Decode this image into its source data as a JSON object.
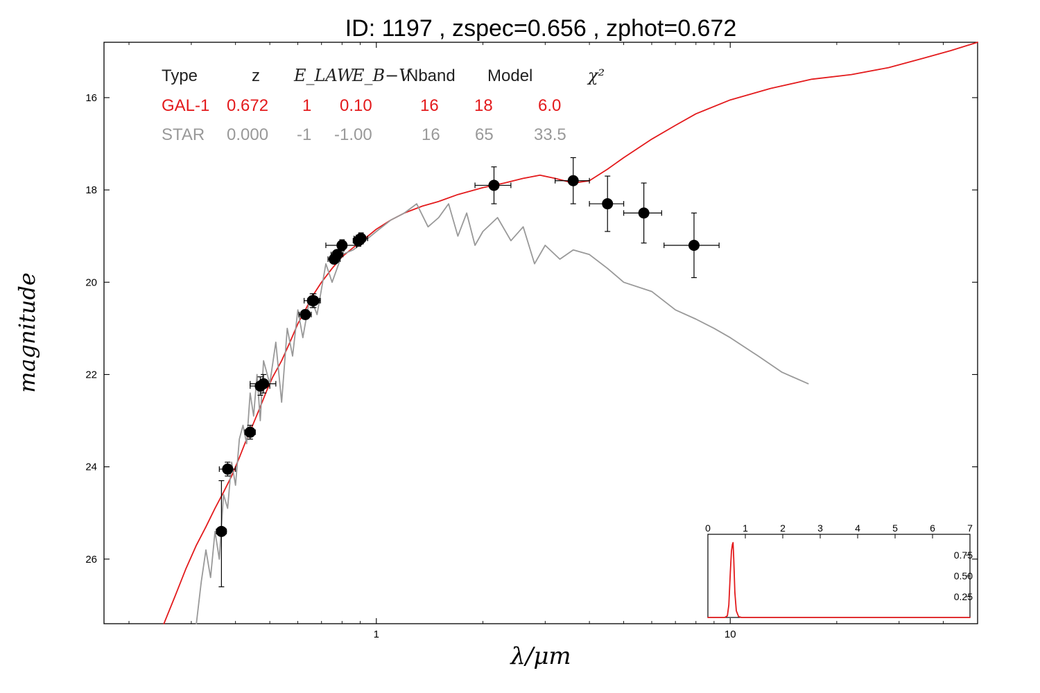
{
  "chart_data": [
    {
      "type": "scatter",
      "title": "ID:  1197  , zspec=0.656 , zphot=0.672",
      "xlabel": "λ/μm",
      "ylabel": "magnitude",
      "xscale": "log",
      "xlim": [
        0.17,
        50
      ],
      "ylim": [
        27.4,
        14.8
      ],
      "y_inverted": true,
      "x_tick_labels": [
        {
          "x": 1,
          "label": "1"
        },
        {
          "x": 10,
          "label": "10"
        }
      ],
      "y_ticks": [
        16,
        18,
        20,
        22,
        24,
        26
      ],
      "legend_table": {
        "header": [
          "Type",
          "z",
          "E_LAW",
          "E_B−V",
          "Nband",
          "Model",
          "χ²"
        ],
        "rows": [
          {
            "values": [
              "GAL-1",
              "0.672",
              "1",
              "0.10",
              "16",
              "18",
              "6.0"
            ],
            "color": "#e31a1c"
          },
          {
            "values": [
              "STAR",
              "0.000",
              "-1",
              "-1.00",
              "16",
              "65",
              "33.5"
            ],
            "color": "#999999"
          }
        ]
      },
      "series": [
        {
          "name": "GAL-1",
          "kind": "line",
          "color": "#e31a1c",
          "points": [
            [
              0.251,
              27.4
            ],
            [
              0.27,
              26.8
            ],
            [
              0.29,
              26.2
            ],
            [
              0.31,
              25.7
            ],
            [
              0.33,
              25.3
            ],
            [
              0.35,
              24.9
            ],
            [
              0.37,
              24.55
            ],
            [
              0.39,
              24.2
            ],
            [
              0.41,
              23.8
            ],
            [
              0.43,
              23.4
            ],
            [
              0.45,
              23.05
            ],
            [
              0.47,
              22.7
            ],
            [
              0.49,
              22.35
            ],
            [
              0.51,
              22.05
            ],
            [
              0.54,
              21.7
            ],
            [
              0.57,
              21.3
            ],
            [
              0.6,
              20.9
            ],
            [
              0.63,
              20.6
            ],
            [
              0.66,
              20.3
            ],
            [
              0.7,
              20.0
            ],
            [
              0.75,
              19.7
            ],
            [
              0.8,
              19.45
            ],
            [
              0.86,
              19.25
            ],
            [
              0.93,
              19.05
            ],
            [
              1.0,
              18.85
            ],
            [
              1.1,
              18.65
            ],
            [
              1.2,
              18.5
            ],
            [
              1.35,
              18.35
            ],
            [
              1.5,
              18.25
            ],
            [
              1.7,
              18.1
            ],
            [
              2.0,
              17.95
            ],
            [
              2.3,
              17.85
            ],
            [
              2.6,
              17.75
            ],
            [
              2.9,
              17.68
            ],
            [
              3.2,
              17.75
            ],
            [
              3.6,
              17.85
            ],
            [
              4.0,
              17.8
            ],
            [
              4.5,
              17.55
            ],
            [
              5.0,
              17.3
            ],
            [
              6.0,
              16.9
            ],
            [
              7.0,
              16.6
            ],
            [
              8.0,
              16.35
            ],
            [
              10.0,
              16.05
            ],
            [
              13.0,
              15.8
            ],
            [
              17.0,
              15.6
            ],
            [
              22.0,
              15.5
            ],
            [
              28.0,
              15.35
            ],
            [
              35.0,
              15.15
            ],
            [
              42.0,
              14.98
            ],
            [
              50.0,
              14.8
            ]
          ]
        },
        {
          "name": "STAR",
          "kind": "line",
          "color": "#999999",
          "points": [
            [
              0.31,
              27.4
            ],
            [
              0.32,
              26.5
            ],
            [
              0.33,
              25.8
            ],
            [
              0.34,
              26.4
            ],
            [
              0.35,
              25.4
            ],
            [
              0.36,
              26.0
            ],
            [
              0.37,
              24.6
            ],
            [
              0.38,
              24.9
            ],
            [
              0.39,
              23.9
            ],
            [
              0.4,
              24.4
            ],
            [
              0.41,
              23.4
            ],
            [
              0.42,
              23.1
            ],
            [
              0.43,
              23.5
            ],
            [
              0.44,
              22.4
            ],
            [
              0.45,
              22.9
            ],
            [
              0.46,
              22.0
            ],
            [
              0.47,
              23.0
            ],
            [
              0.48,
              21.7
            ],
            [
              0.5,
              22.2
            ],
            [
              0.52,
              21.3
            ],
            [
              0.54,
              22.6
            ],
            [
              0.56,
              21.0
            ],
            [
              0.58,
              21.6
            ],
            [
              0.6,
              20.6
            ],
            [
              0.62,
              21.2
            ],
            [
              0.65,
              20.3
            ],
            [
              0.68,
              20.7
            ],
            [
              0.72,
              19.6
            ],
            [
              0.75,
              20.0
            ],
            [
              0.8,
              19.4
            ],
            [
              0.86,
              19.3
            ],
            [
              0.93,
              19.1
            ],
            [
              1.0,
              18.9
            ],
            [
              1.1,
              18.65
            ],
            [
              1.2,
              18.5
            ],
            [
              1.3,
              18.3
            ],
            [
              1.4,
              18.8
            ],
            [
              1.5,
              18.6
            ],
            [
              1.6,
              18.3
            ],
            [
              1.7,
              19.0
            ],
            [
              1.8,
              18.5
            ],
            [
              1.9,
              19.2
            ],
            [
              2.0,
              18.9
            ],
            [
              2.2,
              18.6
            ],
            [
              2.4,
              19.1
            ],
            [
              2.6,
              18.8
            ],
            [
              2.8,
              19.6
            ],
            [
              3.0,
              19.2
            ],
            [
              3.3,
              19.5
            ],
            [
              3.6,
              19.3
            ],
            [
              4.0,
              19.4
            ],
            [
              4.5,
              19.7
            ],
            [
              5.0,
              20.0
            ],
            [
              6.0,
              20.2
            ],
            [
              7.0,
              20.6
            ],
            [
              8.0,
              20.8
            ],
            [
              9.0,
              21.0
            ],
            [
              10.0,
              21.2
            ],
            [
              12.0,
              21.6
            ],
            [
              14.0,
              21.95
            ],
            [
              16.6,
              22.2
            ]
          ]
        }
      ],
      "points": [
        {
          "x": 0.365,
          "y": 25.4,
          "xerr": 0.012,
          "yerr": [
            1.1,
            1.2
          ]
        },
        {
          "x": 0.38,
          "y": 24.05,
          "xerr": 0.02,
          "yerr": [
            0.15,
            0.15
          ]
        },
        {
          "x": 0.44,
          "y": 23.25,
          "xerr": 0.015,
          "yerr": [
            0.15,
            0.15
          ]
        },
        {
          "x": 0.47,
          "y": 22.25,
          "xerr": 0.03,
          "yerr": [
            0.2,
            0.2
          ]
        },
        {
          "x": 0.48,
          "y": 22.2,
          "xerr": 0.04,
          "yerr": [
            0.2,
            0.2
          ]
        },
        {
          "x": 0.63,
          "y": 20.7,
          "xerr": 0.025,
          "yerr": [
            0.1,
            0.1
          ]
        },
        {
          "x": 0.66,
          "y": 20.4,
          "xerr": 0.035,
          "yerr": [
            0.15,
            0.15
          ]
        },
        {
          "x": 0.665,
          "y": 20.4,
          "xerr": 0.025,
          "yerr": [
            0.15,
            0.15
          ]
        },
        {
          "x": 0.76,
          "y": 19.5,
          "xerr": 0.03,
          "yerr": [
            0.1,
            0.1
          ]
        },
        {
          "x": 0.775,
          "y": 19.4,
          "xerr": 0.03,
          "yerr": [
            0.1,
            0.1
          ]
        },
        {
          "x": 0.8,
          "y": 19.2,
          "xerr": 0.08,
          "yerr": [
            0.12,
            0.12
          ]
        },
        {
          "x": 0.89,
          "y": 19.1,
          "xerr": 0.03,
          "yerr": [
            0.12,
            0.12
          ]
        },
        {
          "x": 0.905,
          "y": 19.05,
          "xerr": 0.04,
          "yerr": [
            0.12,
            0.12
          ]
        },
        {
          "x": 2.15,
          "y": 17.9,
          "xerr": 0.25,
          "yerr": [
            0.4,
            0.4
          ]
        },
        {
          "x": 3.6,
          "y": 17.8,
          "xerr": 0.4,
          "yerr": [
            0.5,
            0.5
          ]
        },
        {
          "x": 4.5,
          "y": 18.3,
          "xerr": 0.5,
          "yerr": [
            0.6,
            0.6
          ]
        },
        {
          "x": 5.7,
          "y": 18.5,
          "xerr": 0.7,
          "yerr": [
            0.65,
            0.65
          ]
        },
        {
          "x": 7.9,
          "y": 19.2,
          "xerr": 1.4,
          "yerr": [
            0.7,
            0.7
          ]
        }
      ]
    },
    {
      "type": "line",
      "name": "inset P(z)",
      "xlim": [
        0,
        7
      ],
      "ylim": [
        0,
        1.0
      ],
      "x_ticks": [
        0,
        1,
        2,
        3,
        4,
        5,
        6,
        7
      ],
      "y_ticks": [
        0.25,
        0.5,
        0.75
      ],
      "y_tick_labels": [
        "0.25",
        "0.50",
        "0.75"
      ],
      "color": "#e31a1c",
      "points": [
        [
          0.0,
          0.0
        ],
        [
          0.45,
          0.0
        ],
        [
          0.52,
          0.02
        ],
        [
          0.56,
          0.15
        ],
        [
          0.6,
          0.55
        ],
        [
          0.63,
          0.8
        ],
        [
          0.655,
          0.88
        ],
        [
          0.672,
          0.9
        ],
        [
          0.69,
          0.7
        ],
        [
          0.72,
          0.3
        ],
        [
          0.76,
          0.08
        ],
        [
          0.82,
          0.01
        ],
        [
          0.9,
          0.0
        ],
        [
          7.0,
          0.0
        ]
      ]
    }
  ]
}
